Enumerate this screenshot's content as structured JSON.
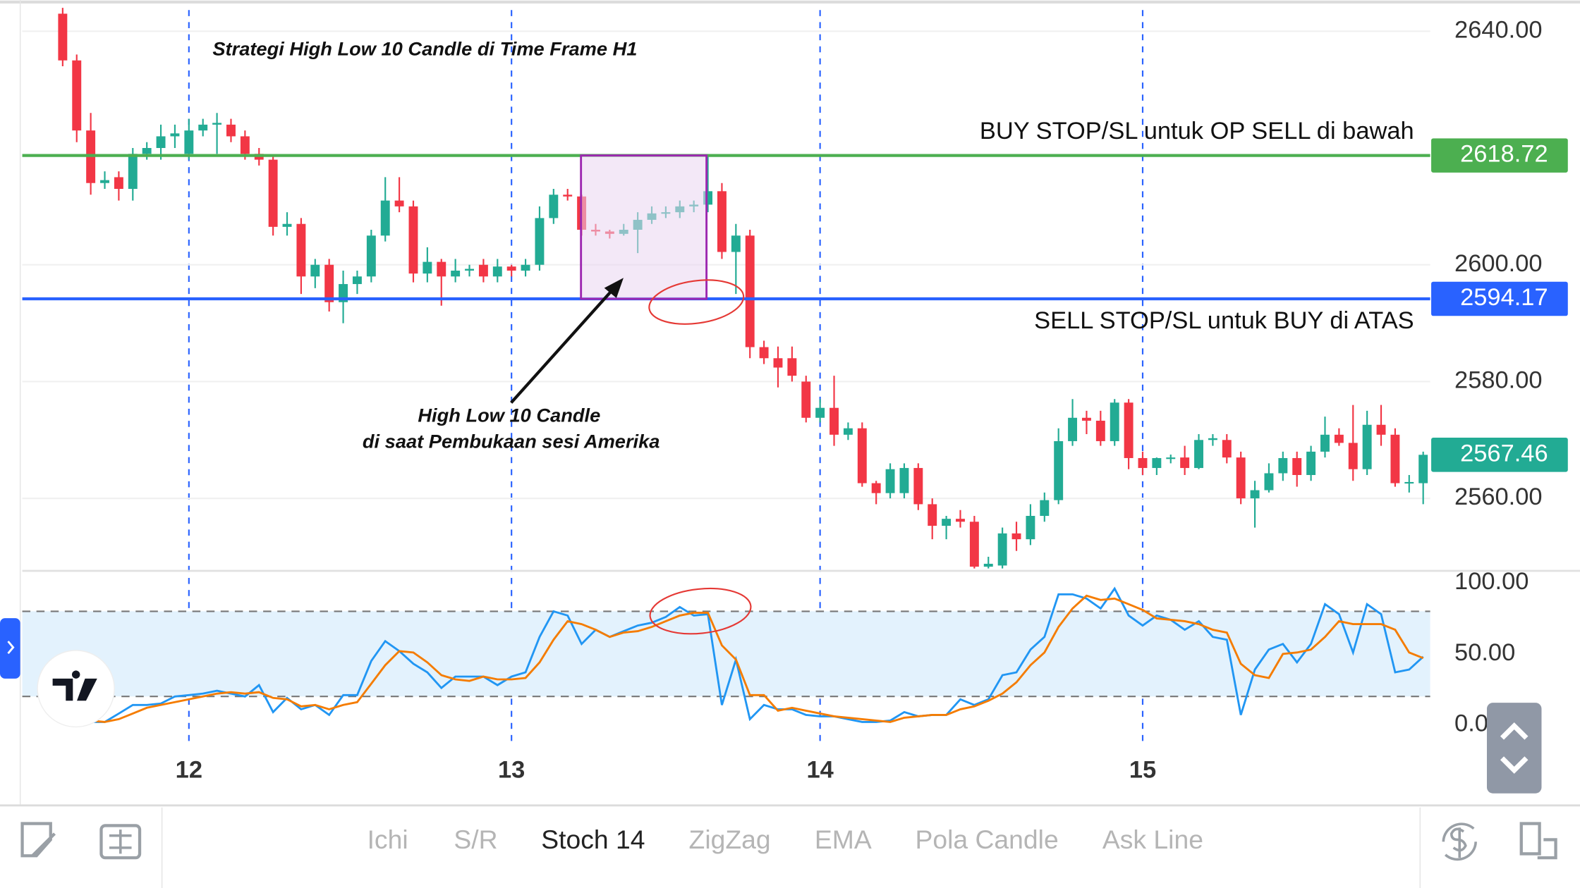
{
  "chart_data": [
    {
      "type": "candlestick",
      "annotations": [
        "Strategi High Low 10 Candle di Time Frame H1",
        "High Low 10 Candle",
        "di saat Pembukaan sesi Amerika"
      ],
      "categories": [
        null,
        null,
        null,
        null,
        null,
        null,
        null,
        null,
        null,
        "12",
        null,
        null,
        null,
        null,
        null,
        null,
        null,
        null,
        null,
        null,
        null,
        null,
        null,
        null,
        null,
        null,
        null,
        null,
        null,
        null,
        null,
        null,
        "13",
        null,
        null,
        null,
        null,
        null,
        null,
        null,
        null,
        null,
        null,
        null,
        null,
        null,
        null,
        null,
        null,
        null,
        null,
        null,
        null,
        null,
        "14",
        null,
        null,
        null,
        null,
        null,
        null,
        null,
        null,
        null,
        null,
        null,
        null,
        null,
        null,
        null,
        null,
        null,
        null,
        null,
        null,
        null,
        null,
        "15",
        null,
        null,
        null,
        null,
        null,
        null,
        null,
        null,
        null,
        null,
        null,
        null,
        null,
        null,
        null,
        null,
        null,
        null,
        null,
        null
      ],
      "open": [
        2643,
        2635,
        2623,
        2614,
        2615,
        2613,
        2619,
        2620,
        2622,
        2619,
        2623,
        2624,
        2624,
        2622,
        2619,
        2618,
        2606.5,
        2607,
        2598,
        2600,
        2593.6,
        2596.7,
        2598,
        2605,
        2611,
        2610,
        2598.5,
        2600.5,
        2598,
        2599,
        2600,
        2598,
        2599.7,
        2599,
        2600,
        2608,
        2612,
        2611.7,
        2606,
        2605.7,
        2605.3,
        2606,
        2607.7,
        2608.8,
        2609,
        2610,
        2610.3,
        2612.6,
        2602.2,
        2605,
        2585.9,
        2584,
        2584,
        2580,
        2573.8,
        2575.5,
        2570.9,
        2572,
        2562.6,
        2560.9,
        2560.9,
        2565.2,
        2559,
        2555.3,
        2556.5,
        2556,
        2548.3,
        2548.5,
        2554,
        2553,
        2557,
        2559.7,
        2569.8,
        2573.8,
        2573.3,
        2569.8,
        2576.4,
        2566.9,
        2565.2,
        2566.9,
        2567,
        2565.2,
        2570,
        2570,
        2567,
        2560,
        2561.4,
        2564.3,
        2566.9,
        2564,
        2568,
        2570.9,
        2569.5,
        2565,
        2572.6,
        2570.9,
        2562.6,
        2562.6
      ],
      "high": [
        2644,
        2636,
        2626,
        2616,
        2616,
        2620,
        2621,
        2624,
        2624,
        2625,
        2625,
        2626,
        2625,
        2623,
        2620,
        2618.5,
        2609,
        2608,
        2601,
        2601,
        2599,
        2599,
        2606,
        2615,
        2615,
        2611,
        2603,
        2601,
        2601,
        2600,
        2601,
        2601,
        2600,
        2601,
        2610,
        2613,
        2613,
        2612,
        2607,
        2606,
        2607,
        2609,
        2610,
        2610,
        2611,
        2611,
        2618.7,
        2614,
        2607,
        2606,
        2587,
        2586,
        2586,
        2581,
        2577,
        2581,
        2573,
        2573,
        2563,
        2566,
        2566,
        2566,
        2560,
        2557,
        2558,
        2557,
        2550,
        2555,
        2556,
        2559,
        2561,
        2572,
        2577,
        2575,
        2575,
        2577,
        2577,
        2568,
        2567,
        2567.5,
        2569,
        2571,
        2571,
        2571,
        2568,
        2563,
        2566,
        2568,
        2568,
        2569,
        2574,
        2572,
        2576,
        2575,
        2576,
        2572,
        2564,
        2568
      ],
      "low": [
        2634,
        2621,
        2612,
        2613,
        2611,
        2611,
        2618,
        2618,
        2620,
        2618,
        2622,
        2619,
        2621,
        2618,
        2617,
        2605,
        2605,
        2595,
        2596,
        2592,
        2590,
        2595,
        2597,
        2604,
        2609,
        2597,
        2597,
        2593,
        2597,
        2598,
        2597,
        2597,
        2598,
        2598,
        2599,
        2607,
        2611,
        2605,
        2605,
        2604.5,
        2605,
        2602,
        2607,
        2608,
        2608,
        2609,
        2609,
        2601,
        2595,
        2584,
        2583,
        2579,
        2580,
        2573,
        2573,
        2569,
        2570,
        2562,
        2559,
        2560,
        2560,
        2558,
        2553,
        2553,
        2555,
        2548,
        2548,
        2548,
        2551,
        2552,
        2556,
        2559,
        2569,
        2571,
        2569,
        2569,
        2565,
        2564,
        2564,
        2566,
        2564,
        2565,
        2569,
        2566,
        2559,
        2555,
        2561,
        2563,
        2562,
        2563,
        2567,
        2569,
        2563,
        2564,
        2569,
        2562,
        2561,
        2559
      ],
      "close": [
        2635,
        2623,
        2614,
        2614.5,
        2613,
        2619,
        2620,
        2622,
        2622.5,
        2623,
        2624,
        2624.3,
        2622,
        2619,
        2618,
        2606.5,
        2607,
        2598,
        2600,
        2593.6,
        2596.7,
        2598,
        2605,
        2611,
        2610,
        2598.5,
        2600.5,
        2598,
        2599,
        2599.3,
        2598,
        2599.7,
        2599,
        2600,
        2608,
        2612,
        2611.7,
        2606,
        2605.7,
        2605.3,
        2606,
        2607.7,
        2608.8,
        2609,
        2610,
        2610.3,
        2612.6,
        2602.2,
        2605,
        2585.9,
        2584,
        2582.4,
        2581,
        2573.8,
        2575.5,
        2570.9,
        2572,
        2562.6,
        2560.9,
        2565,
        2565.2,
        2559,
        2555.3,
        2556.5,
        2556,
        2548.3,
        2548.8,
        2554,
        2553,
        2557,
        2559.7,
        2569.8,
        2573.8,
        2573.3,
        2569.8,
        2576.4,
        2566.9,
        2565.2,
        2566.9,
        2567,
        2565.2,
        2570,
        2570.3,
        2567,
        2560,
        2561.4,
        2564.3,
        2566.9,
        2564,
        2568,
        2570.9,
        2569.5,
        2565,
        2572.6,
        2570.9,
        2562.6,
        2562.8,
        2567.46
      ],
      "up_color": "#22ab94",
      "down_color": "#f23645",
      "ylim": [
        2548,
        2644
      ],
      "yticks": [
        {
          "value": 2560,
          "label": "2560.00"
        },
        {
          "value": 2580,
          "label": "2580.00"
        },
        {
          "value": 2600,
          "label": "2600.00"
        },
        {
          "value": 2640,
          "label": "2640.00"
        }
      ],
      "grid": true,
      "price_lines": [
        {
          "value": 2618.72,
          "label": "BUY STOP/SL untuk OP SELL di bawah",
          "color": "#4caf50"
        },
        {
          "value": 2594.17,
          "label": "SELL STOP/SL untuk BUY di ATAS",
          "color": "#2962ff"
        }
      ],
      "last_price_color": "#22ab94"
    },
    {
      "type": "line",
      "series": [
        {
          "color": "#2196f3",
          "values": [
            4,
            3,
            2,
            2,
            8,
            14,
            14,
            15,
            20,
            21,
            22,
            24,
            22,
            20,
            28,
            9,
            19,
            11,
            14,
            7,
            21,
            21,
            45,
            59,
            52,
            43,
            37,
            26,
            34,
            34,
            34,
            28,
            34,
            37,
            62,
            80,
            77,
            57,
            67,
            62,
            66,
            70,
            72,
            76,
            83,
            77,
            78,
            14,
            46,
            4,
            14,
            11,
            11,
            7,
            6,
            6,
            4,
            2,
            2,
            3,
            9,
            6,
            7,
            7,
            18,
            14,
            18,
            35,
            37,
            53,
            62,
            92,
            92,
            89,
            82,
            96,
            77,
            70,
            77,
            74,
            67,
            73,
            62,
            60,
            7,
            39,
            53,
            57,
            44,
            57,
            85,
            78,
            51,
            85,
            78,
            37,
            39,
            48
          ]
        },
        {
          "color": "#f57c00",
          "values": [
            6,
            5,
            3,
            2,
            4,
            8,
            12,
            14,
            16,
            18,
            20,
            22,
            23,
            22,
            23,
            19,
            18,
            13,
            14,
            11,
            14,
            16,
            29,
            42,
            52,
            51,
            44,
            35,
            32,
            31,
            34,
            32,
            32,
            33,
            44,
            60,
            73,
            71,
            67,
            62,
            65,
            66,
            69,
            73,
            77,
            79,
            79,
            56,
            46,
            21,
            21,
            10,
            12,
            10,
            8,
            6,
            5,
            4,
            3,
            2,
            5,
            6,
            7,
            7,
            11,
            13,
            17,
            22,
            30,
            42,
            51,
            69,
            82,
            91,
            88,
            89,
            85,
            81,
            75,
            74,
            73,
            71,
            67,
            65,
            43,
            35,
            33,
            50,
            51,
            53,
            62,
            73,
            71,
            71,
            71,
            67,
            51,
            47
          ]
        }
      ],
      "band": [
        20,
        80
      ],
      "band_color": "#e3f2fd",
      "ylim": [
        -14,
        108
      ],
      "yticks": [
        {
          "value": 0,
          "label": "0.00"
        },
        {
          "value": 50,
          "label": "50.00"
        },
        {
          "value": 100,
          "label": "100.00"
        }
      ]
    }
  ],
  "toolbar": {
    "items": [
      "Ichi",
      "S/R",
      "Stoch 14",
      "ZigZag",
      "EMA",
      "Pola Candle",
      "Ask Line"
    ]
  }
}
